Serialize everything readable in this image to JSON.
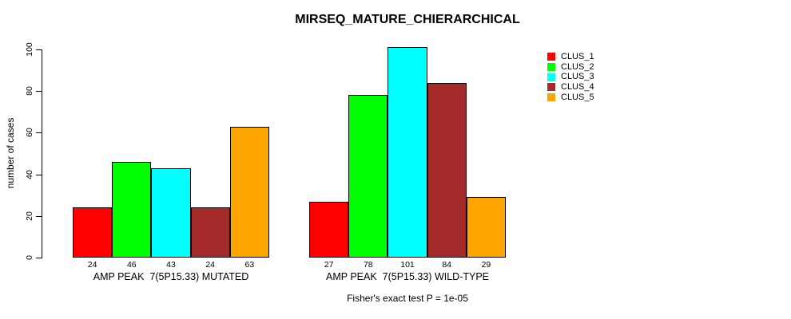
{
  "title": "MIRSEQ_MATURE_CHIERARCHICAL",
  "footer": "Fisher's exact test P = 1e-05",
  "y_axis": {
    "label": "number of cases"
  },
  "chart_data": {
    "type": "bar",
    "title": "MIRSEQ_MATURE_CHIERARCHICAL",
    "xlabel": "",
    "ylabel": "number of cases",
    "ylim": [
      0,
      100
    ],
    "yticks": [
      0,
      20,
      40,
      60,
      80,
      100
    ],
    "grid": false,
    "legend_position": "right",
    "bar_value_labels": true,
    "categories": [
      "AMP PEAK  7(5P15.33) MUTATED",
      "AMP PEAK  7(5P15.33) WILD-TYPE"
    ],
    "series": [
      {
        "name": "CLUS_1",
        "color": "#FF0000",
        "values": [
          24,
          27
        ]
      },
      {
        "name": "CLUS_2",
        "color": "#00FF00",
        "values": [
          46,
          78
        ]
      },
      {
        "name": "CLUS_3",
        "color": "#00FFFF",
        "values": [
          43,
          101
        ]
      },
      {
        "name": "CLUS_4",
        "color": "#A52A2A",
        "values": [
          24,
          84
        ]
      },
      {
        "name": "CLUS_5",
        "color": "#FFA500",
        "values": [
          63,
          29
        ]
      }
    ],
    "annotation": "Fisher's exact test P = 1e-05"
  }
}
